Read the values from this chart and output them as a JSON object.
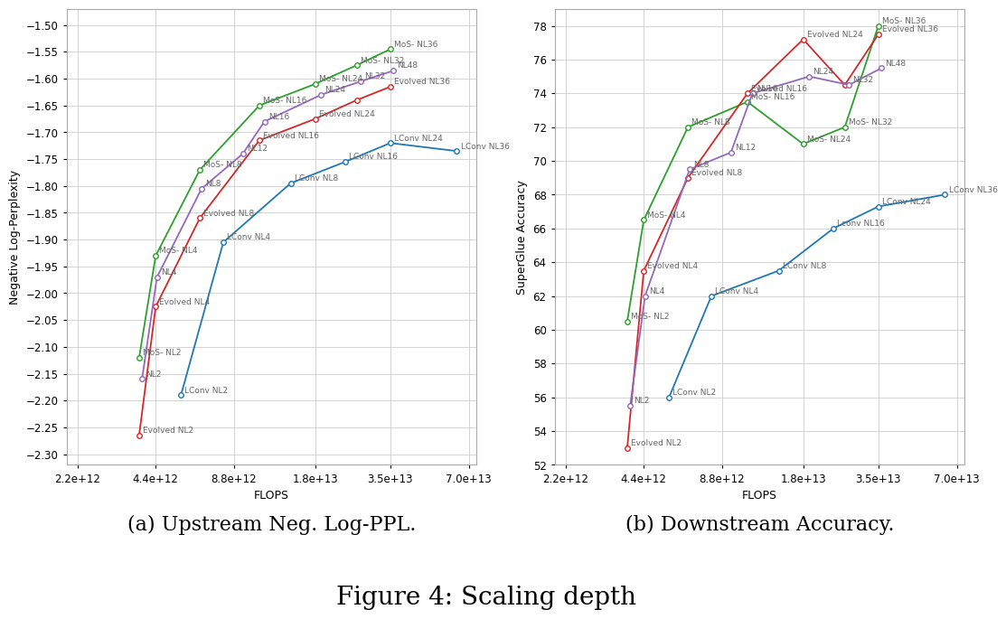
{
  "fig_title": "Figure 4: Scaling depth",
  "caption_a": "(a) Upstream Neg. Log-PPL.",
  "caption_b": "(b) Downstream Accuracy.",
  "background_color": "#ffffff",
  "series": [
    {
      "name": "MoS",
      "color": "#2ca02c",
      "left_flops": [
        3800000000000.0,
        4400000000000.0,
        6500000000000.0,
        11000000000000.0,
        18000000000000.0,
        26000000000000.0,
        35000000000000.0
      ],
      "left_y": [
        -2.12,
        -1.93,
        -1.77,
        -1.65,
        -1.61,
        -1.575,
        -1.545
      ],
      "left_labels": [
        "MoS- NL2",
        "MoS- NL4",
        "MoS- NL8",
        "MoS- NL16",
        "MoS- NL24",
        "MoS- NL32",
        "MoS- NL36"
      ],
      "right_flops": [
        3800000000000.0,
        4400000000000.0,
        6500000000000.0,
        11000000000000.0,
        18000000000000.0,
        26000000000000.0,
        35000000000000.0
      ],
      "right_y": [
        60.5,
        66.5,
        72.0,
        73.5,
        71.0,
        72.0,
        78.0
      ],
      "right_labels": [
        "MoS- NL2",
        "MoS- NL4",
        "MoS- NL8",
        "MoS- NL16",
        "MoS- NL24",
        "MoS- NL32",
        "MoS- NL36"
      ]
    },
    {
      "name": "Evolved",
      "color": "#d62728",
      "left_flops": [
        3800000000000.0,
        4400000000000.0,
        6500000000000.0,
        11000000000000.0,
        18000000000000.0,
        26000000000000.0,
        35000000000000.0
      ],
      "left_y": [
        -2.265,
        -2.025,
        -1.86,
        -1.715,
        -1.675,
        -1.64,
        -1.615
      ],
      "left_labels": [
        "Evolved NL2",
        "Evolved NL4",
        "Evolved NL8",
        "Evolved NL16",
        "Evolved NL24",
        "",
        "Evolved NL36"
      ],
      "right_flops": [
        3800000000000.0,
        4400000000000.0,
        6500000000000.0,
        11000000000000.0,
        18000000000000.0,
        26000000000000.0,
        35000000000000.0
      ],
      "right_y": [
        53.0,
        63.5,
        69.0,
        74.0,
        77.2,
        74.5,
        77.5
      ],
      "right_labels": [
        "Evolved NL2",
        "Evolved NL4",
        "Evolved NL8",
        "Evolved NL16",
        "Evolved NL24",
        "",
        "Evolved NL36"
      ]
    },
    {
      "name": "NL",
      "color": "#9467bd",
      "left_flops": [
        3900000000000.0,
        4450000000000.0,
        6600000000000.0,
        9500000000000.0,
        11500000000000.0,
        19000000000000.0,
        27000000000000.0,
        36000000000000.0
      ],
      "left_y": [
        -2.16,
        -1.97,
        -1.805,
        -1.74,
        -1.68,
        -1.63,
        -1.605,
        -1.585
      ],
      "left_labels": [
        "NL2",
        "NL4",
        "NL8",
        "NL12",
        "NL16",
        "NL24",
        "NL32",
        "NL48"
      ],
      "right_flops": [
        3900000000000.0,
        4450000000000.0,
        6600000000000.0,
        9500000000000.0,
        11500000000000.0,
        19000000000000.0,
        27000000000000.0,
        36000000000000.0
      ],
      "right_y": [
        55.5,
        62.0,
        69.5,
        70.5,
        74.0,
        75.0,
        74.5,
        75.5
      ],
      "right_labels": [
        "NL2",
        "NL4",
        "NL8",
        "NL12",
        "NL16",
        "NL24",
        "NL32",
        "NL48"
      ]
    },
    {
      "name": "LConv",
      "color": "#1f77b4",
      "left_flops": [
        5500000000000.0,
        8000000000000.0,
        14500000000000.0,
        23500000000000.0,
        35000000000000.0,
        63000000000000.0
      ],
      "left_y": [
        -2.19,
        -1.905,
        -1.795,
        -1.755,
        -1.72,
        -1.735
      ],
      "left_labels": [
        "LConv NL2",
        "LConv NL4",
        "LConv NL8",
        "LConv NL16",
        "LConv NL24",
        "LConv NL36"
      ],
      "right_flops": [
        5500000000000.0,
        8000000000000.0,
        14500000000000.0,
        23500000000000.0,
        35000000000000.0,
        63000000000000.0
      ],
      "right_y": [
        56.0,
        62.0,
        63.5,
        66.0,
        67.3,
        68.0
      ],
      "right_labels": [
        "LConv NL2",
        "LConv NL4",
        "LConv NL8",
        "Lconv NL16",
        "LConv NL24",
        "LConv NL36"
      ]
    }
  ],
  "left_xlim": [
    2000000000000.0,
    75000000000000.0
  ],
  "left_ylim": [
    -2.32,
    -1.47
  ],
  "left_ylabel": "Negative Log-Perplexity",
  "left_xlabel": "FLOPS",
  "left_xticks": [
    2200000000000.0,
    4400000000000.0,
    8800000000000.0,
    18000000000000.0,
    35000000000000.0,
    70000000000000.0
  ],
  "left_xtick_labels": [
    "2.2e+12",
    "4.4e+12",
    "8.8e+12",
    "1.8e+13",
    "3.5e+13",
    "7.0e+13"
  ],
  "left_yticks": [
    -2.3,
    -2.25,
    -2.2,
    -2.15,
    -2.1,
    -2.05,
    -2.0,
    -1.95,
    -1.9,
    -1.85,
    -1.8,
    -1.75,
    -1.7,
    -1.65,
    -1.6,
    -1.55,
    -1.5
  ],
  "right_xlim": [
    2000000000000.0,
    75000000000000.0
  ],
  "right_ylim": [
    52,
    79
  ],
  "right_ylabel": "SuperGlue Accuracy",
  "right_xlabel": "FLOPS",
  "right_xticks": [
    2200000000000.0,
    4400000000000.0,
    8800000000000.0,
    18000000000000.0,
    35000000000000.0,
    70000000000000.0
  ],
  "right_xtick_labels": [
    "2.2e+12",
    "4.4e+12",
    "8.8e+12",
    "1.8e+13",
    "3.5e+13",
    "7.0e+13"
  ],
  "right_yticks": [
    52,
    54,
    56,
    58,
    60,
    62,
    64,
    66,
    68,
    70,
    72,
    74,
    76,
    78
  ]
}
